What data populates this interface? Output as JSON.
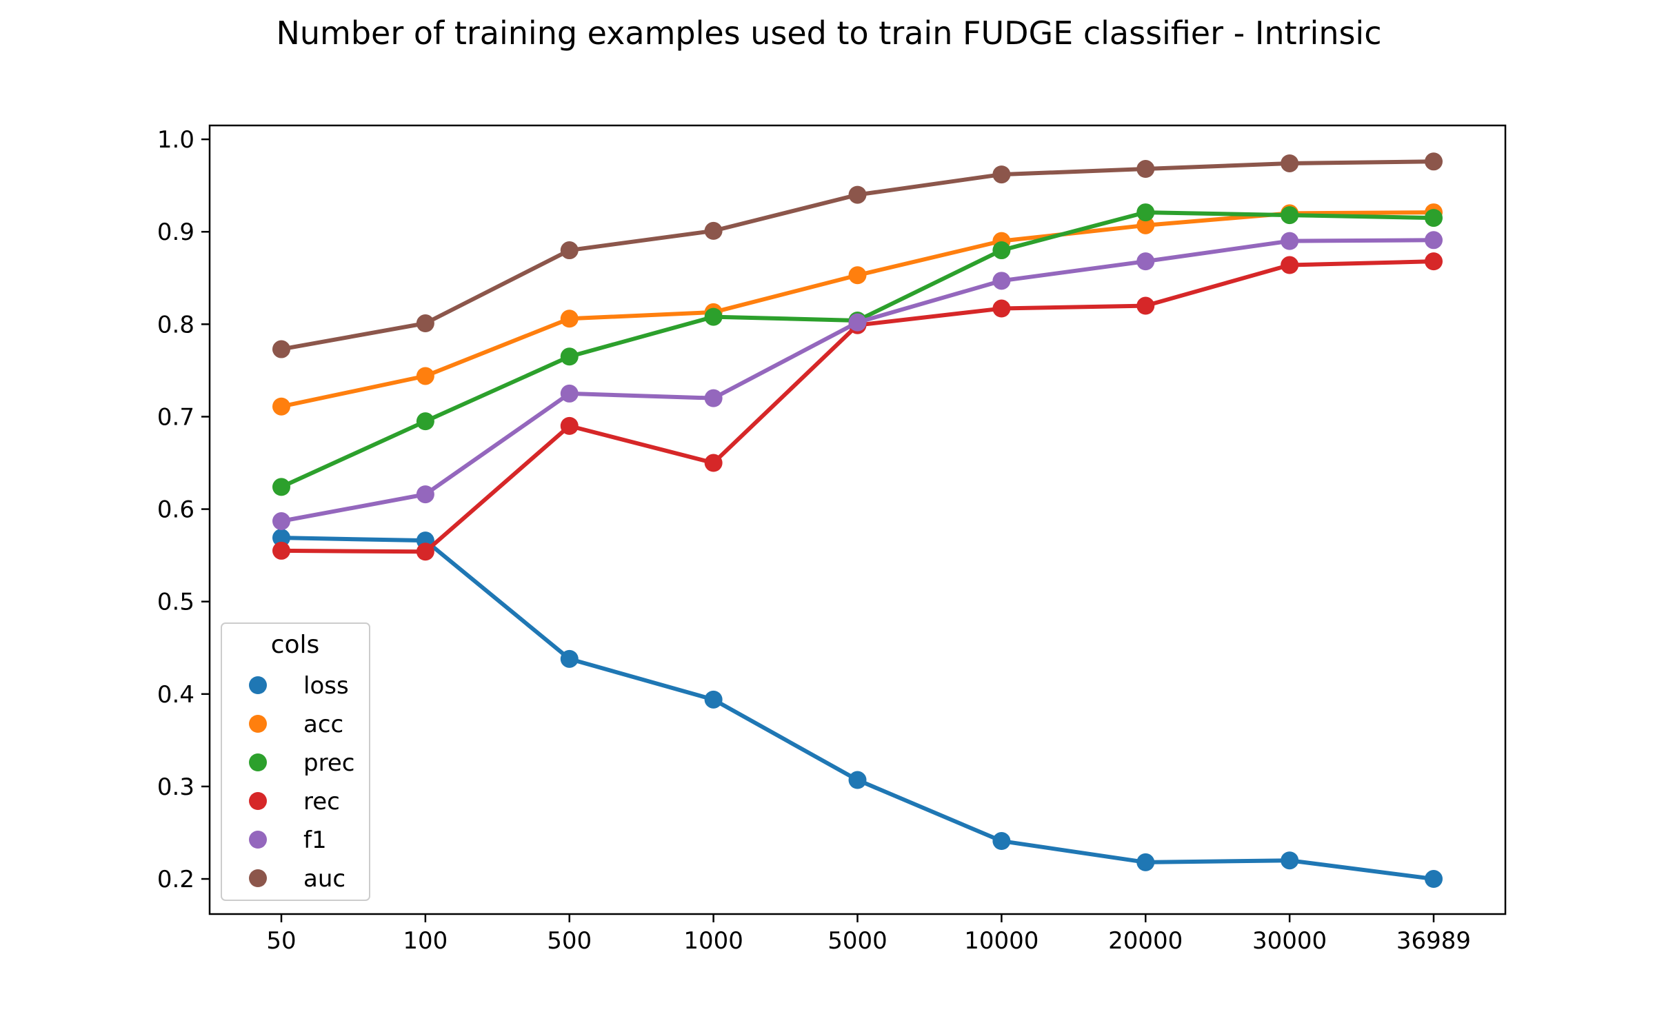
{
  "chart_data": {
    "type": "line",
    "title": "Number of training examples used to train FUDGE classifier - Intrinsic",
    "xlabel": "",
    "ylabel": "",
    "categories": [
      "50",
      "100",
      "500",
      "1000",
      "5000",
      "10000",
      "20000",
      "30000",
      "36989"
    ],
    "ylim": [
      0.162,
      1.015
    ],
    "yticks": [
      "0.2",
      "0.3",
      "0.4",
      "0.5",
      "0.6",
      "0.7",
      "0.8",
      "0.9",
      "1.0"
    ],
    "grid": false,
    "legend": {
      "title": "cols",
      "position": "lower-left"
    },
    "series": [
      {
        "name": "loss",
        "color": "#1f77b4",
        "values": [
          0.569,
          0.566,
          0.438,
          0.394,
          0.307,
          0.241,
          0.218,
          0.22,
          0.2
        ]
      },
      {
        "name": "acc",
        "color": "#ff7f0e",
        "values": [
          0.711,
          0.744,
          0.806,
          0.813,
          0.853,
          0.89,
          0.907,
          0.92,
          0.921
        ]
      },
      {
        "name": "prec",
        "color": "#2ca02c",
        "values": [
          0.624,
          0.695,
          0.765,
          0.808,
          0.804,
          0.88,
          0.921,
          0.918,
          0.915
        ]
      },
      {
        "name": "rec",
        "color": "#d62728",
        "values": [
          0.555,
          0.554,
          0.69,
          0.65,
          0.799,
          0.817,
          0.82,
          0.864,
          0.868
        ]
      },
      {
        "name": "f1",
        "color": "#9467bd",
        "values": [
          0.587,
          0.616,
          0.725,
          0.72,
          0.802,
          0.847,
          0.868,
          0.89,
          0.891
        ]
      },
      {
        "name": "auc",
        "color": "#8c564b",
        "values": [
          0.773,
          0.801,
          0.88,
          0.901,
          0.94,
          0.962,
          0.968,
          0.974,
          0.976
        ]
      }
    ]
  }
}
